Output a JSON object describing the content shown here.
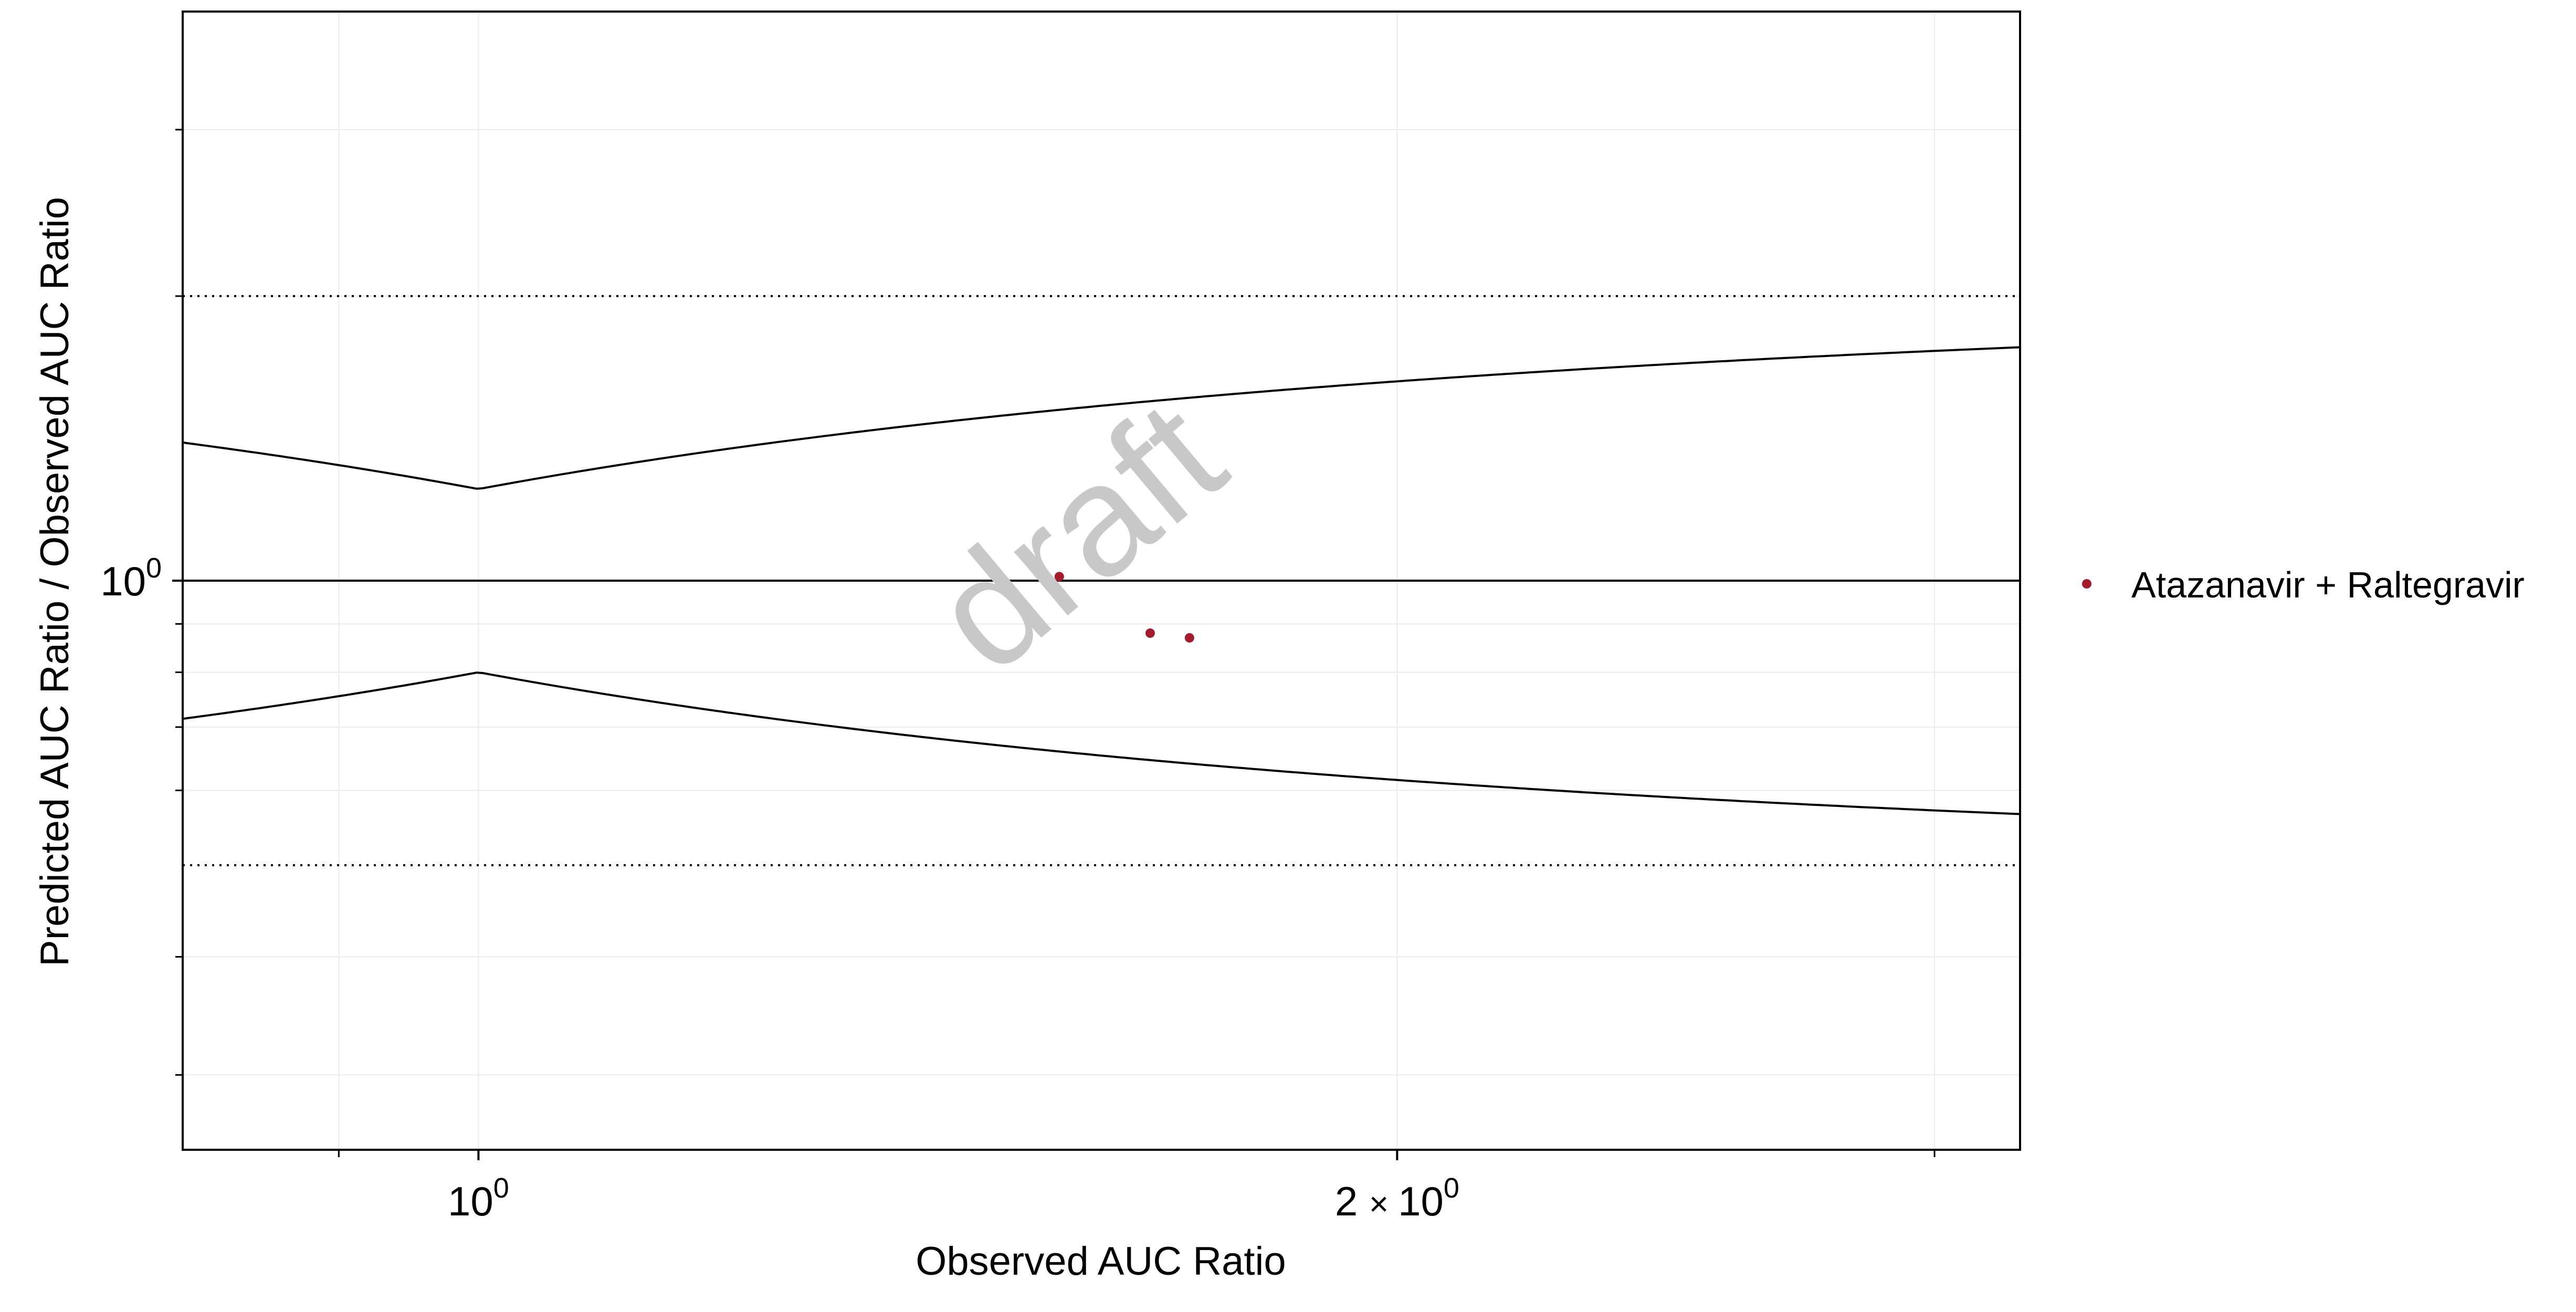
{
  "chart_data": {
    "type": "scatter",
    "title": "",
    "xlabel": "Observed AUC Ratio",
    "ylabel": "Predicted AUC Ratio / Observed AUC Ratio",
    "x_scale": "log",
    "y_scale": "log",
    "xlim": [
      0.8,
      3.2
    ],
    "ylim": [
      0.25,
      4.0
    ],
    "x_ticks": [
      {
        "value": 1,
        "base": "10",
        "exp": "0"
      },
      {
        "value": 2,
        "prefix": "2",
        "times": "×",
        "base": "10",
        "exp": "0"
      }
    ],
    "y_ticks": [
      {
        "value": 1,
        "base": "10",
        "exp": "0"
      }
    ],
    "x_minor_ticks": [
      0.9,
      3
    ],
    "y_minor_ticks": [
      0.3,
      0.4,
      0.6,
      0.7,
      0.8,
      0.9,
      2,
      3
    ],
    "grid": true,
    "reference_lines": [
      {
        "type": "identity",
        "y": 1,
        "style": "solid"
      },
      {
        "type": "horizontal",
        "y": 2,
        "style": "dotted"
      },
      {
        "type": "horizontal",
        "y": 0.5,
        "style": "dotted"
      },
      {
        "type": "guest_limit_upper",
        "style": "solid",
        "delta": 1.25
      },
      {
        "type": "guest_limit_lower",
        "style": "solid",
        "delta": 1.25
      }
    ],
    "series": [
      {
        "name": "Atazanavir + Raltegravir",
        "color": "#a51b2e",
        "points": [
          {
            "x": 1.55,
            "y": 1.01
          },
          {
            "x": 1.66,
            "y": 0.88
          },
          {
            "x": 1.71,
            "y": 0.87
          }
        ]
      }
    ],
    "legend": {
      "position": "right"
    },
    "watermark": "draft"
  }
}
